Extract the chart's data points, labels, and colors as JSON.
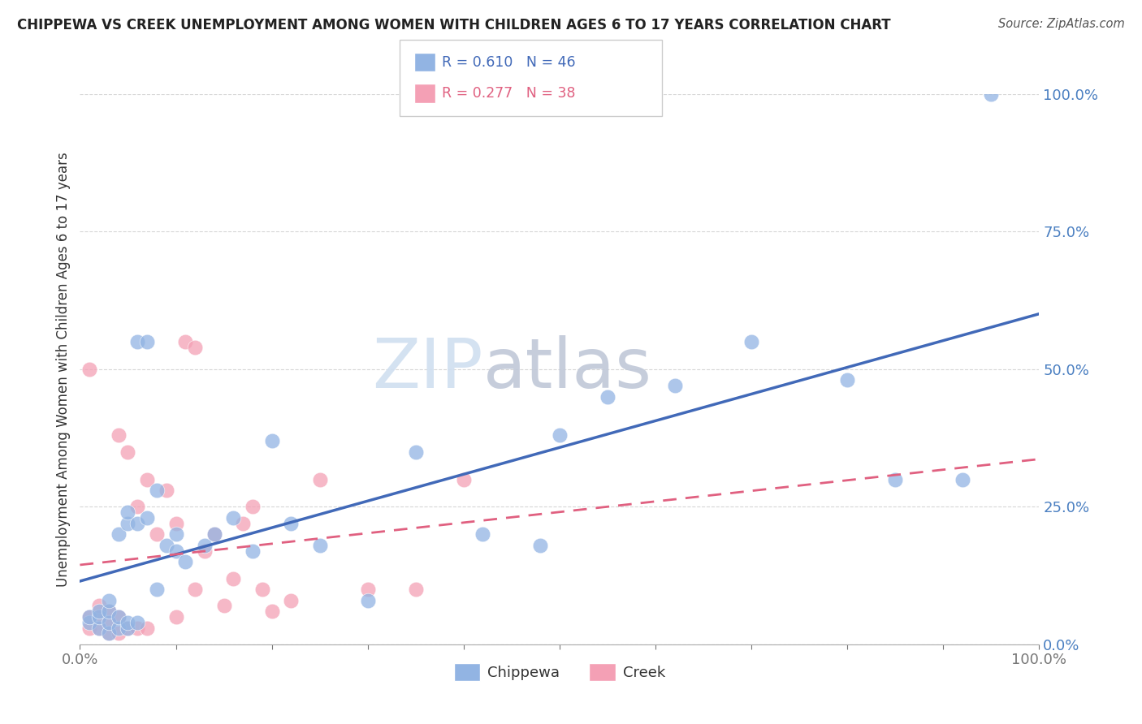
{
  "title": "CHIPPEWA VS CREEK UNEMPLOYMENT AMONG WOMEN WITH CHILDREN AGES 6 TO 17 YEARS CORRELATION CHART",
  "source": "Source: ZipAtlas.com",
  "ylabel": "Unemployment Among Women with Children Ages 6 to 17 years",
  "legend_labels": [
    "Chippewa",
    "Creek"
  ],
  "chippewa_color": "#92b4e3",
  "creek_color": "#f4a0b5",
  "chippewa_line_color": "#4169b8",
  "creek_line_color": "#e06080",
  "watermark_part1": "ZIP",
  "watermark_part2": "atlas",
  "xlim": [
    0,
    1.0
  ],
  "ylim": [
    0,
    1.0
  ],
  "xticks": [
    0.0,
    0.1,
    0.2,
    0.3,
    0.4,
    0.5,
    0.6,
    0.7,
    0.8,
    0.9,
    1.0
  ],
  "yticks": [
    0.0,
    0.25,
    0.5,
    0.75,
    1.0
  ],
  "xticklabels_sparse": {
    "0.0": "0.0%",
    "1.0": "100.0%"
  },
  "yticklabels": [
    "0.0%",
    "25.0%",
    "50.0%",
    "75.0%",
    "100.0%"
  ],
  "chippewa_x": [
    0.01,
    0.01,
    0.02,
    0.02,
    0.02,
    0.03,
    0.03,
    0.03,
    0.03,
    0.04,
    0.04,
    0.04,
    0.05,
    0.05,
    0.05,
    0.05,
    0.06,
    0.06,
    0.06,
    0.07,
    0.07,
    0.08,
    0.08,
    0.09,
    0.1,
    0.1,
    0.11,
    0.13,
    0.14,
    0.16,
    0.18,
    0.2,
    0.22,
    0.25,
    0.3,
    0.35,
    0.42,
    0.48,
    0.5,
    0.55,
    0.62,
    0.7,
    0.8,
    0.85,
    0.92,
    0.95
  ],
  "chippewa_y": [
    0.04,
    0.05,
    0.03,
    0.05,
    0.06,
    0.02,
    0.04,
    0.06,
    0.08,
    0.03,
    0.05,
    0.2,
    0.03,
    0.04,
    0.22,
    0.24,
    0.04,
    0.22,
    0.55,
    0.23,
    0.55,
    0.1,
    0.28,
    0.18,
    0.17,
    0.2,
    0.15,
    0.18,
    0.2,
    0.23,
    0.17,
    0.37,
    0.22,
    0.18,
    0.08,
    0.35,
    0.2,
    0.18,
    0.38,
    0.45,
    0.47,
    0.55,
    0.48,
    0.3,
    0.3,
    1.0
  ],
  "creek_x": [
    0.01,
    0.01,
    0.01,
    0.02,
    0.02,
    0.02,
    0.03,
    0.03,
    0.03,
    0.04,
    0.04,
    0.04,
    0.05,
    0.05,
    0.06,
    0.06,
    0.07,
    0.07,
    0.08,
    0.09,
    0.1,
    0.1,
    0.11,
    0.12,
    0.12,
    0.13,
    0.14,
    0.15,
    0.16,
    0.17,
    0.18,
    0.19,
    0.2,
    0.22,
    0.25,
    0.3,
    0.35,
    0.4
  ],
  "creek_y": [
    0.03,
    0.05,
    0.5,
    0.03,
    0.05,
    0.07,
    0.02,
    0.04,
    0.06,
    0.02,
    0.05,
    0.38,
    0.03,
    0.35,
    0.03,
    0.25,
    0.03,
    0.3,
    0.2,
    0.28,
    0.05,
    0.22,
    0.55,
    0.54,
    0.1,
    0.17,
    0.2,
    0.07,
    0.12,
    0.22,
    0.25,
    0.1,
    0.06,
    0.08,
    0.3,
    0.1,
    0.1,
    0.3
  ]
}
